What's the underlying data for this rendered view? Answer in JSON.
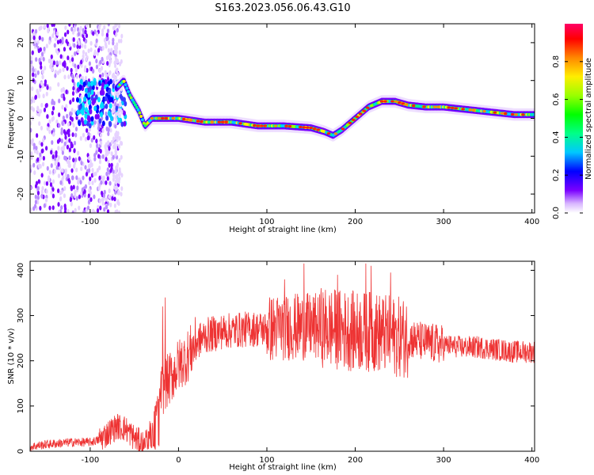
{
  "title": "S163.2023.056.06.43.G10",
  "chart_data": [
    {
      "type": "heatmap",
      "xlabel": "Height of straight line (km)",
      "ylabel": "Frequency (Hz)",
      "xlim": [
        -168,
        403
      ],
      "ylim": [
        -25,
        25
      ],
      "xticks": [
        -100,
        0,
        100,
        200,
        300,
        400
      ],
      "xtick_labels": [
        "-100",
        "0",
        "100",
        "200",
        "300",
        "400"
      ],
      "yticks": [
        20,
        10,
        0,
        -10,
        -20
      ],
      "ytick_labels": [
        "20",
        "10",
        "0",
        "-10",
        "-20"
      ],
      "colorbar": {
        "label": "Normalized spectral amplitude",
        "ticks": [
          0.0,
          0.2,
          0.4,
          0.6,
          0.8
        ],
        "tick_labels": [
          "0.0",
          "0.2",
          "0.4",
          "0.6",
          "0.8"
        ],
        "range": [
          0,
          1
        ]
      },
      "ridge": {
        "x": [
          -70,
          -62,
          -55,
          -45,
          -38,
          -30,
          -20,
          0,
          30,
          60,
          90,
          120,
          150,
          165,
          175,
          185,
          200,
          215,
          230,
          245,
          260,
          280,
          300,
          320,
          340,
          360,
          380,
          403
        ],
        "y": [
          8,
          10,
          6,
          2,
          -2,
          0,
          0,
          0,
          -1,
          -1,
          -2,
          -2,
          -2.5,
          -3.5,
          -4.5,
          -3,
          0,
          3,
          4.5,
          4.5,
          3.5,
          3,
          3,
          2.5,
          2,
          1.5,
          1,
          1
        ]
      }
    },
    {
      "type": "line",
      "xlabel": "Height of straight line (km)",
      "ylabel": "SNR (10 * v/v)",
      "xlim": [
        -168,
        403
      ],
      "ylim": [
        0,
        420
      ],
      "xticks": [
        -100,
        0,
        100,
        200,
        300,
        400
      ],
      "xtick_labels": [
        "-100",
        "0",
        "100",
        "200",
        "300",
        "400"
      ],
      "yticks": [
        0,
        100,
        200,
        300,
        400
      ],
      "ytick_labels": [
        "0",
        "100",
        "200",
        "300",
        "400"
      ],
      "series": [
        {
          "color": "#ee3333",
          "x": [
            -168,
            -150,
            -120,
            -100,
            -90,
            -80,
            -70,
            -60,
            -50,
            -40,
            -30,
            -20,
            -15,
            -10,
            0,
            10,
            20,
            30,
            50,
            80,
            100,
            120,
            140,
            160,
            180,
            200,
            220,
            240,
            260,
            280,
            300,
            320,
            340,
            360,
            380,
            403
          ],
          "values": [
            10,
            15,
            20,
            20,
            25,
            40,
            55,
            50,
            30,
            15,
            60,
            130,
            150,
            160,
            190,
            210,
            240,
            255,
            265,
            270,
            270,
            275,
            275,
            275,
            270,
            265,
            265,
            255,
            250,
            240,
            235,
            230,
            230,
            225,
            220,
            220
          ]
        }
      ],
      "spikes": [
        {
          "x": -15,
          "value": 340
        },
        {
          "x": -18,
          "value": 320
        },
        {
          "x": 142,
          "value": 415
        },
        {
          "x": 212,
          "value": 415
        },
        {
          "x": 218,
          "value": 410
        },
        {
          "x": 240,
          "value": 395
        },
        {
          "x": 120,
          "value": 380
        },
        {
          "x": 180,
          "value": 390
        }
      ]
    }
  ]
}
